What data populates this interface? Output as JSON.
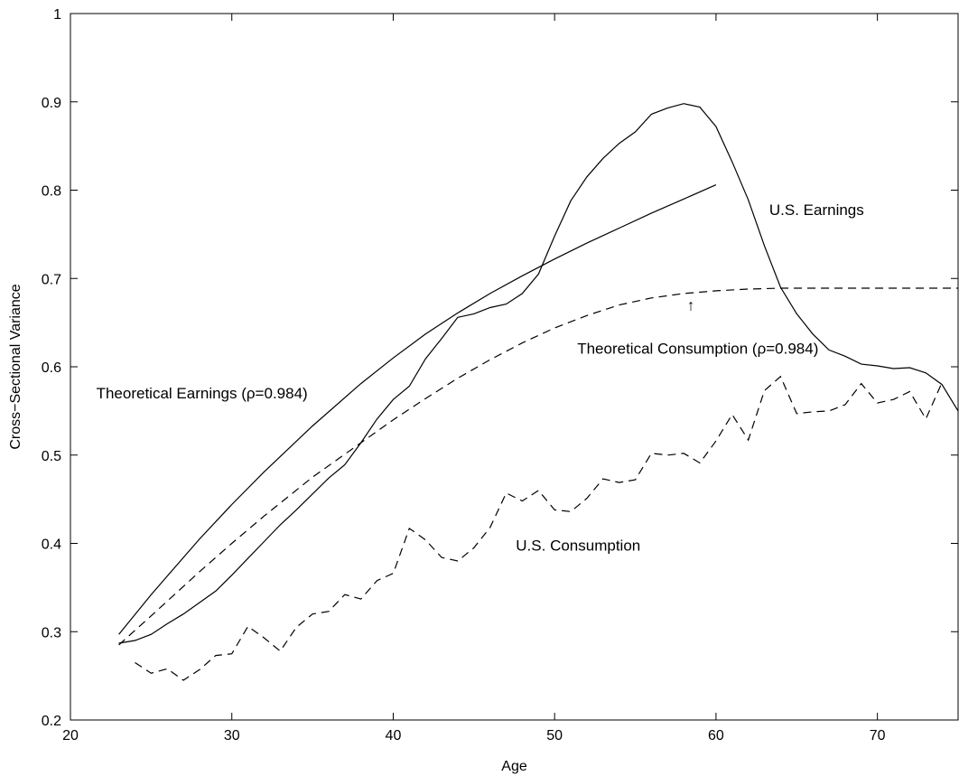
{
  "chart_data": {
    "type": "line",
    "title": "",
    "xlabel": "Age",
    "ylabel": "Cross−Sectional Variance",
    "xlim": [
      20,
      75
    ],
    "ylim": [
      0.2,
      1.0
    ],
    "xticks": [
      20,
      30,
      40,
      50,
      60,
      70
    ],
    "yticks": [
      0.2,
      0.3,
      0.4,
      0.5,
      0.6,
      0.7,
      0.8,
      0.9,
      1.0
    ],
    "tick_labels_x": [
      "20",
      "30",
      "40",
      "50",
      "60",
      "70"
    ],
    "tick_labels_y": [
      "0.2",
      "0.3",
      "0.4",
      "0.5",
      "0.6",
      "0.7",
      "0.8",
      "0.9",
      "1"
    ],
    "grid": false,
    "series": [
      {
        "name": "Theoretical Earnings (ρ=0.984)",
        "style": "solid",
        "x": [
          23,
          25,
          28,
          30,
          32,
          35,
          38,
          40,
          42,
          44,
          46,
          48,
          50,
          52,
          54,
          56,
          58,
          60
        ],
        "y": [
          0.297,
          0.342,
          0.405,
          0.444,
          0.481,
          0.533,
          0.581,
          0.61,
          0.637,
          0.661,
          0.683,
          0.703,
          0.722,
          0.74,
          0.757,
          0.774,
          0.79,
          0.806
        ]
      },
      {
        "name": "U.S. Earnings",
        "style": "solid",
        "x": [
          23,
          24,
          25,
          26,
          27,
          28,
          29,
          30,
          31,
          32,
          33,
          34,
          35,
          36,
          37,
          38,
          39,
          40,
          41,
          42,
          43,
          44,
          45,
          46,
          47,
          48,
          49,
          50,
          51,
          52,
          53,
          54,
          55,
          56,
          57,
          58,
          59,
          60,
          61,
          62,
          63,
          64,
          65,
          66,
          67,
          68,
          69,
          70,
          71,
          72,
          73,
          74,
          75
        ],
        "y": [
          0.287,
          0.29,
          0.297,
          0.309,
          0.32,
          0.333,
          0.346,
          0.364,
          0.383,
          0.402,
          0.421,
          0.438,
          0.456,
          0.474,
          0.489,
          0.514,
          0.541,
          0.563,
          0.578,
          0.609,
          0.632,
          0.656,
          0.66,
          0.667,
          0.671,
          0.683,
          0.705,
          0.748,
          0.788,
          0.815,
          0.836,
          0.853,
          0.866,
          0.886,
          0.893,
          0.898,
          0.894,
          0.872,
          0.832,
          0.789,
          0.737,
          0.69,
          0.66,
          0.637,
          0.619,
          0.612,
          0.603,
          0.601,
          0.598,
          0.599,
          0.593,
          0.58,
          0.55
        ]
      },
      {
        "name": "Theoretical Consumption (ρ=0.984)",
        "style": "dashed",
        "x": [
          23,
          25,
          28,
          30,
          32,
          35,
          38,
          40,
          42,
          44,
          46,
          48,
          50,
          52,
          54,
          56,
          58,
          60,
          62,
          64,
          66,
          68,
          70,
          72,
          75
        ],
        "y": [
          0.285,
          0.318,
          0.368,
          0.4,
          0.431,
          0.475,
          0.514,
          0.54,
          0.564,
          0.587,
          0.608,
          0.627,
          0.644,
          0.658,
          0.67,
          0.678,
          0.683,
          0.686,
          0.688,
          0.689,
          0.689,
          0.689,
          0.689,
          0.689,
          0.689
        ]
      },
      {
        "name": "U.S. Consumption",
        "style": "dashed",
        "x": [
          24,
          25,
          26,
          27,
          28,
          29,
          30,
          31,
          32,
          33,
          34,
          35,
          36,
          37,
          38,
          39,
          40,
          41,
          42,
          43,
          44,
          45,
          46,
          47,
          48,
          49,
          50,
          51,
          52,
          53,
          54,
          55,
          56,
          57,
          58,
          59,
          60,
          61,
          62,
          63,
          64,
          65,
          66,
          67,
          68,
          69,
          70,
          71,
          72,
          73,
          74
        ],
        "y": [
          0.265,
          0.253,
          0.258,
          0.245,
          0.257,
          0.273,
          0.275,
          0.306,
          0.293,
          0.278,
          0.305,
          0.32,
          0.323,
          0.342,
          0.337,
          0.358,
          0.366,
          0.417,
          0.404,
          0.384,
          0.38,
          0.395,
          0.418,
          0.457,
          0.448,
          0.46,
          0.438,
          0.436,
          0.451,
          0.473,
          0.469,
          0.472,
          0.502,
          0.5,
          0.502,
          0.491,
          0.516,
          0.546,
          0.517,
          0.573,
          0.589,
          0.547,
          0.549,
          0.55,
          0.557,
          0.581,
          0.559,
          0.563,
          0.572,
          0.541,
          0.582
        ]
      }
    ],
    "annotations": [
      {
        "text": "U.S. Earnings",
        "x": 63.3,
        "y": 0.772
      },
      {
        "text": "Theoretical Consumption (ρ=0.984)",
        "x": 51.4,
        "y": 0.615
      },
      {
        "text": "Theoretical Earnings (ρ=0.984)",
        "x": 21.6,
        "y": 0.564
      },
      {
        "text": "U.S. Consumption",
        "x": 47.6,
        "y": 0.392
      },
      {
        "text": "↑",
        "x": 58.2,
        "y": 0.664
      }
    ]
  }
}
